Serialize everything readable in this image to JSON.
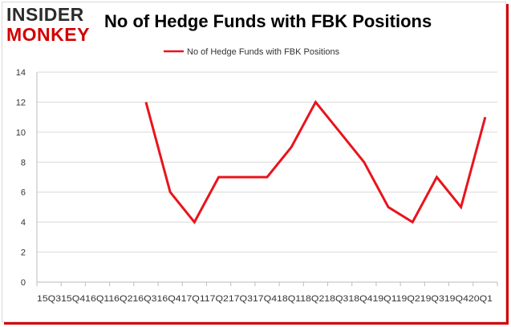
{
  "brand": {
    "logo_top": "INSIDER",
    "logo_bottom": "MONKEY"
  },
  "chart_data": {
    "type": "line",
    "title": "No of Hedge Funds with FBK Positions",
    "xlabel": "",
    "ylabel": "",
    "categories": [
      "2015Q3",
      "2015Q4",
      "2016Q1",
      "2016Q2",
      "2016Q3",
      "2016Q4",
      "2017Q1",
      "2017Q2",
      "2017Q3",
      "2017Q4",
      "2018Q1",
      "2018Q2",
      "2018Q3",
      "2018Q4",
      "2019Q1",
      "2019Q2",
      "2019Q3",
      "2019Q4",
      "2020Q1"
    ],
    "x_tick_labels": [
      "15Q3",
      "15Q4",
      "16Q1",
      "16Q2",
      "16Q3",
      "16Q4",
      "17Q1",
      "17Q2",
      "17Q3",
      "17Q4",
      "18Q1",
      "18Q2",
      "18Q3",
      "18Q4",
      "19Q1",
      "19Q2",
      "19Q3",
      "19Q4",
      "20Q1"
    ],
    "x_tick_text": "15Q315Q416Q116Q216Q316Q417Q117Q217Q317Q418Q118Q218Q318Q419Q119Q219Q319Q420Q1",
    "series": [
      {
        "name": "No of Hedge Funds with FBK Positions",
        "color": "#e8141c",
        "values": [
          null,
          null,
          null,
          null,
          12,
          6,
          4,
          7,
          7,
          7,
          9,
          12,
          10,
          8,
          5,
          4,
          7,
          5,
          11
        ]
      }
    ],
    "ylim": [
      0,
      14
    ],
    "yticks": [
      0,
      2,
      4,
      6,
      8,
      10,
      12,
      14
    ],
    "grid": "horizontal",
    "legend": "top-center"
  }
}
